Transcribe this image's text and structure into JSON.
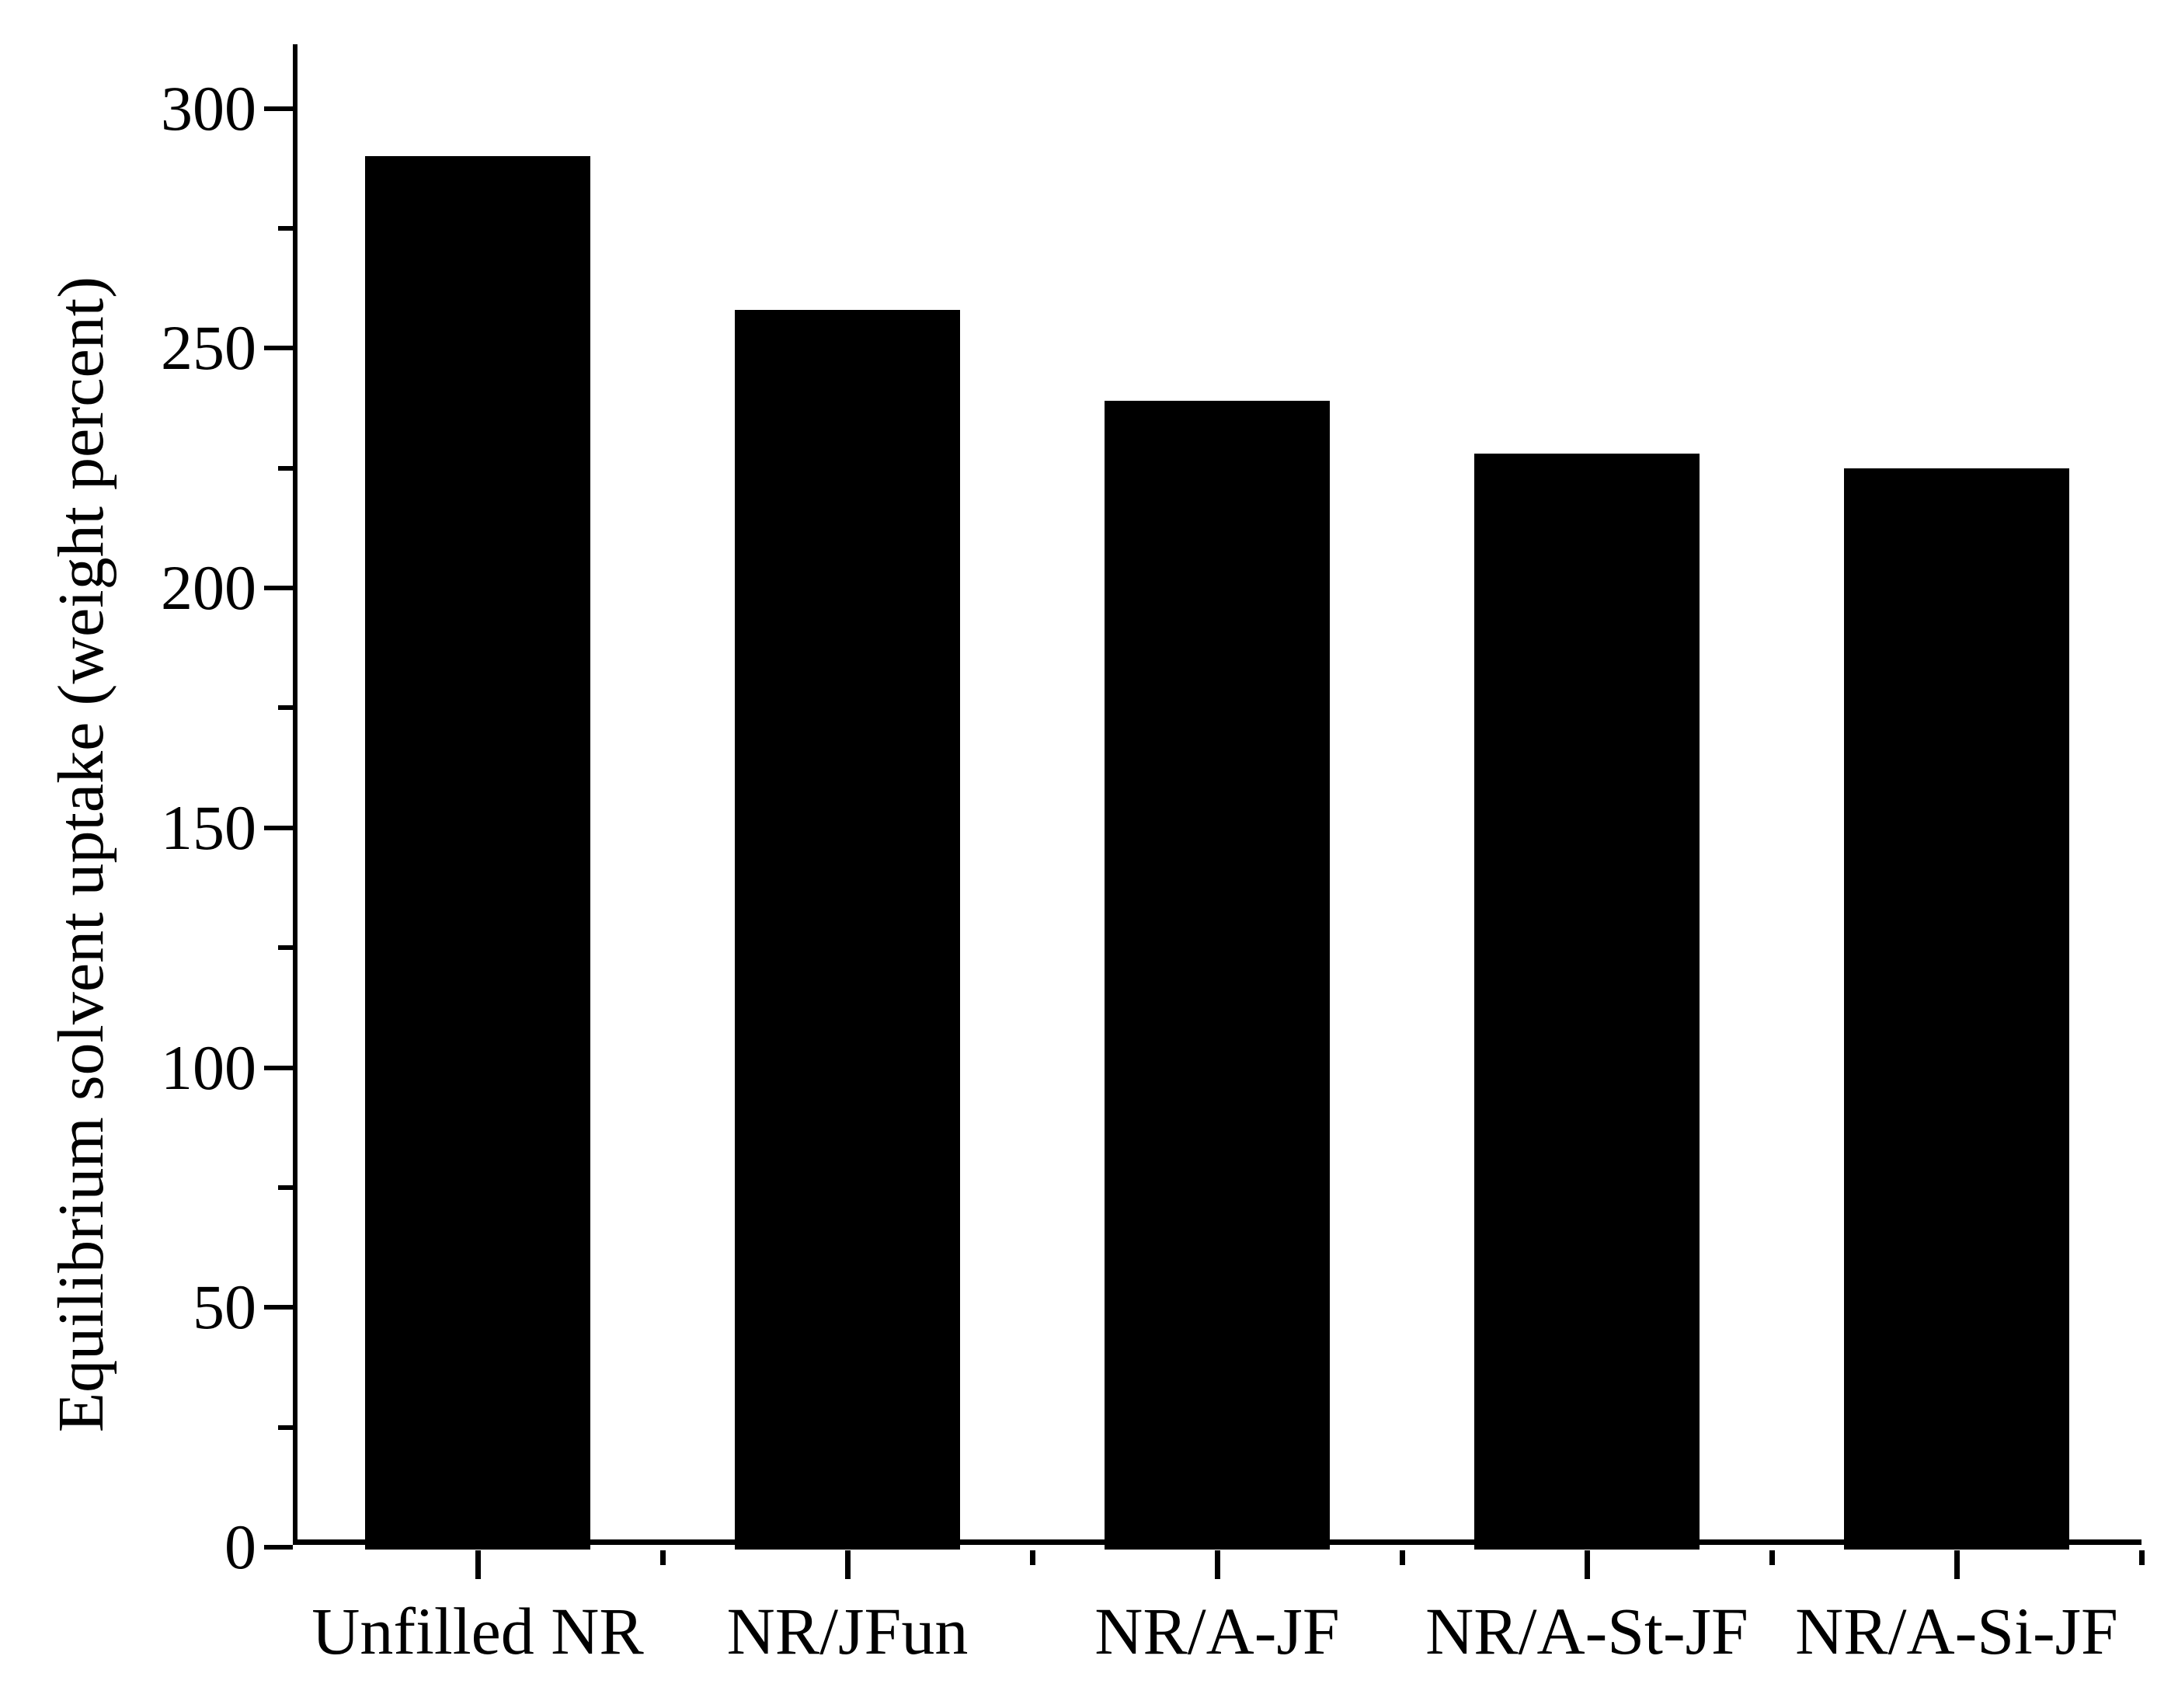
{
  "figure": {
    "background_color": "#ffffff",
    "axis_color": "#000000"
  },
  "chart_data": {
    "type": "bar",
    "title": "",
    "categories": [
      "Unfilled NR",
      "NR/JFun",
      "NR/A-JF",
      "NR/A-St-JF",
      "NR/A-Si-JF"
    ],
    "values": [
      290,
      258,
      239,
      228,
      225
    ],
    "bar_color": "#000000",
    "xlabel": "",
    "ylabel": "Equilibrium solvent uptake (weight percent)",
    "ylim": [
      0,
      313
    ],
    "yticks_major": [
      0,
      50,
      100,
      150,
      200,
      250,
      300
    ],
    "ytick_labels": [
      "0",
      "50",
      "100",
      "150",
      "200",
      "250",
      "300"
    ],
    "yticks_minor": [
      25,
      75,
      125,
      175,
      225,
      275
    ],
    "grid": false,
    "legend": false
  }
}
